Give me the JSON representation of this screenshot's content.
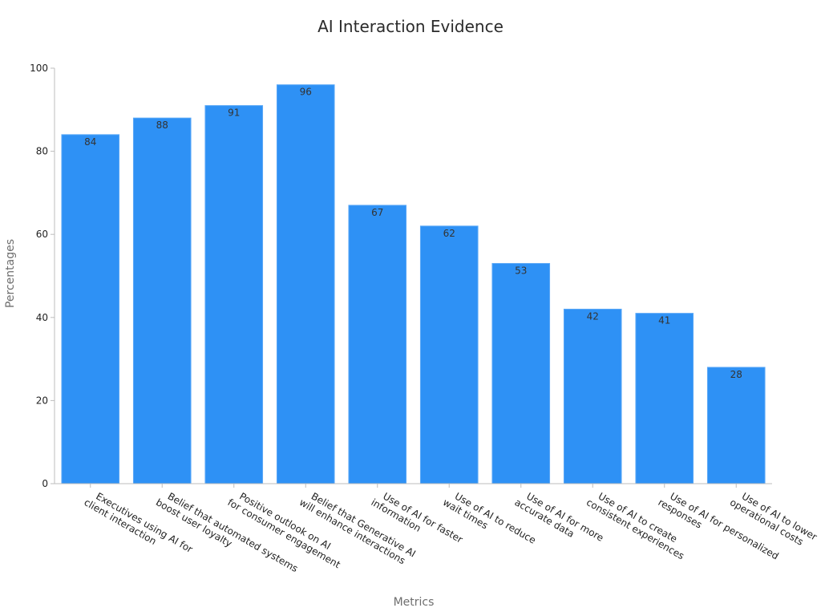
{
  "chart_data": {
    "type": "bar",
    "title": "AI Interaction Evidence",
    "xlabel": "Metrics",
    "ylabel": "Percentages",
    "ylim": [
      0,
      100
    ],
    "yticks": [
      "0",
      "20",
      "40",
      "60",
      "80",
      "100"
    ],
    "grid": false,
    "bar_color": "#2E91F5",
    "categories": [
      [
        "Executives using AI for",
        "client interaction"
      ],
      [
        "Belief that automated systems",
        "boost user loyalty"
      ],
      [
        "Positive outlook on AI",
        "for consumer engagement"
      ],
      [
        "Belief that Generative AI",
        "will enhance interactions"
      ],
      [
        "Use of AI for faster",
        "information"
      ],
      [
        "Use of AI to reduce",
        "wait times"
      ],
      [
        "Use of AI for more",
        "accurate data"
      ],
      [
        "Use of AI to create",
        "consistent experiences"
      ],
      [
        "Use of AI for personalized",
        "responses"
      ],
      [
        "Use of AI to lower",
        "operational costs"
      ]
    ],
    "values": [
      84,
      88,
      91,
      96,
      67,
      62,
      53,
      42,
      41,
      28
    ]
  }
}
